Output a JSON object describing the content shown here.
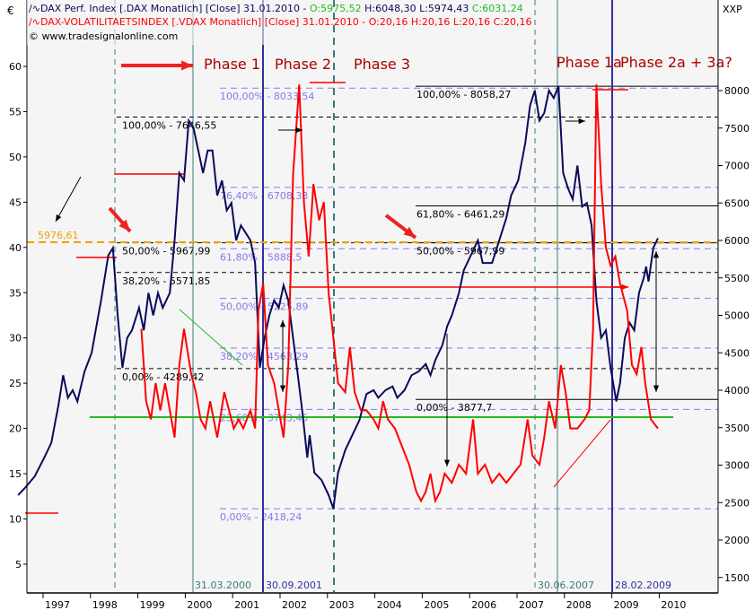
{
  "header": {
    "currency": "€",
    "right_unit": "XXP",
    "dax_legend": "DAX Perf. Index [.DAX  Monatlich] [Close] 31.01.2010 - ",
    "dax_ohlc": {
      "o": "O:5975,52",
      "h": "H:6048,30",
      "l": "L:5974,43",
      "c": "C:6031,24"
    },
    "vdax_legend": "DAX-VOLATILITAETSINDEX [.VDAX  Monatlich] [Close] 31.01.2010 - ",
    "vdax_ohlc": "O:20,16 H:20,16 L:20,16 C:20,16",
    "copyright": "© www.tradesignalonline.com"
  },
  "colors": {
    "dax": "#0a0a5c",
    "vdax": "#ff0000",
    "phase": "#aa0000",
    "fib_purple": "#8878ee",
    "orange": "#f0a000",
    "green": "#22bb22",
    "teal": "#3a7a78",
    "navy": "#3030a0"
  },
  "chart_data": {
    "type": "line",
    "x_ticks": [
      "1997",
      "1998",
      "1999",
      "2000",
      "2001",
      "2002",
      "2003",
      "2004",
      "2005",
      "2006",
      "2007",
      "2008",
      "2009",
      "2010"
    ],
    "left_axis": {
      "ticks": [
        5,
        10,
        15,
        20,
        25,
        30,
        35,
        40,
        45,
        50,
        55,
        60
      ]
    },
    "right_axis": {
      "ticks": [
        1500,
        2000,
        2500,
        3000,
        3500,
        4000,
        4500,
        5000,
        5500,
        6000,
        6500,
        7000,
        7500,
        8000
      ]
    },
    "series": [
      {
        "name": "DAX Perf. Index",
        "axis": "right",
        "points": [
          [
            1996.55,
            2600
          ],
          [
            1996.7,
            2700
          ],
          [
            1996.9,
            2850
          ],
          [
            1997.1,
            3100
          ],
          [
            1997.25,
            3300
          ],
          [
            1997.4,
            3800
          ],
          [
            1997.5,
            4200
          ],
          [
            1997.6,
            3900
          ],
          [
            1997.7,
            4000
          ],
          [
            1997.8,
            3850
          ],
          [
            1997.95,
            4250
          ],
          [
            1998.1,
            4500
          ],
          [
            1998.3,
            5200
          ],
          [
            1998.45,
            5800
          ],
          [
            1998.55,
            5900
          ],
          [
            1998.65,
            5000
          ],
          [
            1998.75,
            4300
          ],
          [
            1998.85,
            4700
          ],
          [
            1998.95,
            4800
          ],
          [
            1999.1,
            5100
          ],
          [
            1999.2,
            4800
          ],
          [
            1999.3,
            5300
          ],
          [
            1999.4,
            5000
          ],
          [
            1999.5,
            5300
          ],
          [
            1999.6,
            5100
          ],
          [
            1999.75,
            5300
          ],
          [
            1999.85,
            6000
          ],
          [
            1999.95,
            6900
          ],
          [
            2000.05,
            6800
          ],
          [
            2000.15,
            7600
          ],
          [
            2000.25,
            7500
          ],
          [
            2000.35,
            7200
          ],
          [
            2000.45,
            6900
          ],
          [
            2000.55,
            7200
          ],
          [
            2000.65,
            7200
          ],
          [
            2000.75,
            6600
          ],
          [
            2000.85,
            6800
          ],
          [
            2000.95,
            6400
          ],
          [
            2001.05,
            6500
          ],
          [
            2001.15,
            6000
          ],
          [
            2001.25,
            6200
          ],
          [
            2001.35,
            6100
          ],
          [
            2001.45,
            6000
          ],
          [
            2001.55,
            5700
          ],
          [
            2001.65,
            4300
          ],
          [
            2001.75,
            4700
          ],
          [
            2001.85,
            5000
          ],
          [
            2001.95,
            5200
          ],
          [
            2002.05,
            5100
          ],
          [
            2002.15,
            5400
          ],
          [
            2002.25,
            5200
          ],
          [
            2002.35,
            4700
          ],
          [
            2002.45,
            4200
          ],
          [
            2002.55,
            3700
          ],
          [
            2002.65,
            3100
          ],
          [
            2002.7,
            3400
          ],
          [
            2002.8,
            2900
          ],
          [
            2002.95,
            2800
          ],
          [
            2003.1,
            2600
          ],
          [
            2003.2,
            2420
          ],
          [
            2003.3,
            2900
          ],
          [
            2003.45,
            3200
          ],
          [
            2003.6,
            3400
          ],
          [
            2003.75,
            3600
          ],
          [
            2003.9,
            3950
          ],
          [
            2004.05,
            4000
          ],
          [
            2004.15,
            3900
          ],
          [
            2004.3,
            4000
          ],
          [
            2004.45,
            4050
          ],
          [
            2004.55,
            3900
          ],
          [
            2004.7,
            4000
          ],
          [
            2004.85,
            4200
          ],
          [
            2005.0,
            4250
          ],
          [
            2005.15,
            4350
          ],
          [
            2005.25,
            4200
          ],
          [
            2005.35,
            4400
          ],
          [
            2005.5,
            4600
          ],
          [
            2005.6,
            4850
          ],
          [
            2005.7,
            5000
          ],
          [
            2005.85,
            5300
          ],
          [
            2005.95,
            5600
          ],
          [
            2006.1,
            5800
          ],
          [
            2006.25,
            6000
          ],
          [
            2006.35,
            5700
          ],
          [
            2006.55,
            5700
          ],
          [
            2006.7,
            6000
          ],
          [
            2006.85,
            6300
          ],
          [
            2006.95,
            6600
          ],
          [
            2007.1,
            6800
          ],
          [
            2007.25,
            7300
          ],
          [
            2007.35,
            7800
          ],
          [
            2007.45,
            8000
          ],
          [
            2007.55,
            7600
          ],
          [
            2007.65,
            7700
          ],
          [
            2007.75,
            8000
          ],
          [
            2007.85,
            7900
          ],
          [
            2007.95,
            8060
          ],
          [
            2008.05,
            6900
          ],
          [
            2008.15,
            6700
          ],
          [
            2008.25,
            6550
          ],
          [
            2008.35,
            7000
          ],
          [
            2008.45,
            6450
          ],
          [
            2008.55,
            6500
          ],
          [
            2008.65,
            6200
          ],
          [
            2008.75,
            5200
          ],
          [
            2008.85,
            4700
          ],
          [
            2008.95,
            4800
          ],
          [
            2009.05,
            4300
          ],
          [
            2009.17,
            3850
          ],
          [
            2009.25,
            4100
          ],
          [
            2009.35,
            4700
          ],
          [
            2009.45,
            4900
          ],
          [
            2009.55,
            4800
          ],
          [
            2009.65,
            5300
          ],
          [
            2009.75,
            5500
          ],
          [
            2009.8,
            5650
          ],
          [
            2009.85,
            5450
          ],
          [
            2009.95,
            5900
          ],
          [
            2010.05,
            6030
          ]
        ]
      },
      {
        "name": "DAX-VOLATILITAETSINDEX",
        "axis": "left",
        "points": [
          [
            1999.15,
            31
          ],
          [
            1999.25,
            23
          ],
          [
            1999.35,
            21
          ],
          [
            1999.45,
            25
          ],
          [
            1999.55,
            22
          ],
          [
            1999.65,
            25
          ],
          [
            1999.75,
            22
          ],
          [
            1999.85,
            19
          ],
          [
            1999.95,
            27
          ],
          [
            2000.05,
            31
          ],
          [
            2000.2,
            26
          ],
          [
            2000.3,
            24
          ],
          [
            2000.4,
            21
          ],
          [
            2000.5,
            20
          ],
          [
            2000.6,
            23
          ],
          [
            2000.75,
            19
          ],
          [
            2000.9,
            24
          ],
          [
            2001.0,
            22
          ],
          [
            2001.1,
            20
          ],
          [
            2001.2,
            21
          ],
          [
            2001.3,
            20
          ],
          [
            2001.45,
            22
          ],
          [
            2001.55,
            20
          ],
          [
            2001.62,
            33
          ],
          [
            2001.72,
            36
          ],
          [
            2001.82,
            27
          ],
          [
            2001.95,
            25
          ],
          [
            2002.05,
            22
          ],
          [
            2002.15,
            19
          ],
          [
            2002.25,
            27
          ],
          [
            2002.35,
            48
          ],
          [
            2002.48,
            58
          ],
          [
            2002.58,
            45
          ],
          [
            2002.68,
            39
          ],
          [
            2002.78,
            47
          ],
          [
            2002.9,
            43
          ],
          [
            2003.0,
            45
          ],
          [
            2003.1,
            35
          ],
          [
            2003.2,
            30
          ],
          [
            2003.3,
            25
          ],
          [
            2003.45,
            24
          ],
          [
            2003.55,
            29
          ],
          [
            2003.65,
            24
          ],
          [
            2003.78,
            22
          ],
          [
            2003.9,
            22
          ],
          [
            2004.05,
            21
          ],
          [
            2004.15,
            20
          ],
          [
            2004.25,
            23
          ],
          [
            2004.35,
            21
          ],
          [
            2004.5,
            20
          ],
          [
            2004.65,
            18
          ],
          [
            2004.8,
            16
          ],
          [
            2004.95,
            13
          ],
          [
            2005.05,
            12
          ],
          [
            2005.15,
            13
          ],
          [
            2005.25,
            15
          ],
          [
            2005.35,
            12
          ],
          [
            2005.45,
            13
          ],
          [
            2005.55,
            15
          ],
          [
            2005.7,
            14
          ],
          [
            2005.85,
            16
          ],
          [
            2006.0,
            15
          ],
          [
            2006.15,
            21
          ],
          [
            2006.25,
            15
          ],
          [
            2006.4,
            16
          ],
          [
            2006.55,
            14
          ],
          [
            2006.7,
            15
          ],
          [
            2006.85,
            14
          ],
          [
            2007.0,
            15
          ],
          [
            2007.15,
            16
          ],
          [
            2007.3,
            21
          ],
          [
            2007.4,
            17
          ],
          [
            2007.55,
            16
          ],
          [
            2007.65,
            19
          ],
          [
            2007.75,
            23
          ],
          [
            2007.88,
            20
          ],
          [
            2008.0,
            27
          ],
          [
            2008.1,
            24
          ],
          [
            2008.2,
            20
          ],
          [
            2008.35,
            20
          ],
          [
            2008.5,
            21
          ],
          [
            2008.6,
            22
          ],
          [
            2008.68,
            31
          ],
          [
            2008.75,
            58
          ],
          [
            2008.85,
            47
          ],
          [
            2008.95,
            40
          ],
          [
            2009.05,
            38
          ],
          [
            2009.15,
            39
          ],
          [
            2009.25,
            36
          ],
          [
            2009.4,
            33
          ],
          [
            2009.5,
            27
          ],
          [
            2009.6,
            26
          ],
          [
            2009.7,
            29
          ],
          [
            2009.78,
            25
          ],
          [
            2009.9,
            21
          ],
          [
            2010.05,
            20
          ]
        ]
      }
    ],
    "fib_sets": [
      {
        "style": "black-dashed",
        "levels": [
          {
            "label": "100,00% - 7646,55",
            "value": 7646.55
          },
          {
            "label": "50,00% - 5967,99",
            "value": 5967.99
          },
          {
            "label": "38,20% - 5571,85",
            "value": 5571.85
          },
          {
            "label": "0,00% - 4289,42",
            "value": 4289.42
          }
        ]
      },
      {
        "style": "purple-dashed",
        "levels": [
          {
            "label": "100,00% - 8033,54",
            "value": 8033.54
          },
          {
            "label": "76,40% - 6708,33",
            "value": 6708.33
          },
          {
            "label": "61,80% - 5888,5",
            "value": 5888.5
          },
          {
            "label": "50,00% - 5225,89",
            "value": 5225.89
          },
          {
            "label": "38,20% - 4563,29",
            "value": 4563.29
          },
          {
            "label": "23,60% - 3743,45",
            "value": 3743.45
          },
          {
            "label": "0,00% - 2418,24",
            "value": 2418.24
          }
        ]
      },
      {
        "style": "black-solid",
        "levels": [
          {
            "label": "100,00% - 8058,27",
            "value": 8058.27
          },
          {
            "label": "61,80% - 6461,29",
            "value": 6461.29
          },
          {
            "label": "50,00% - 5967,99",
            "value": 5967.99
          },
          {
            "label": "0,00% - 3877,7",
            "value": 3877.7
          }
        ]
      }
    ],
    "orange_level": {
      "label": "5976,61",
      "value": 5976.61
    },
    "vertical_markers": [
      "31.03.2000",
      "30.09.2001",
      "30.06.2007",
      "28.02.2009"
    ],
    "phases": [
      "Phase 1",
      "Phase 2",
      "Phase 3",
      "Phase 1a",
      "Phase 2a + 3a?"
    ]
  }
}
